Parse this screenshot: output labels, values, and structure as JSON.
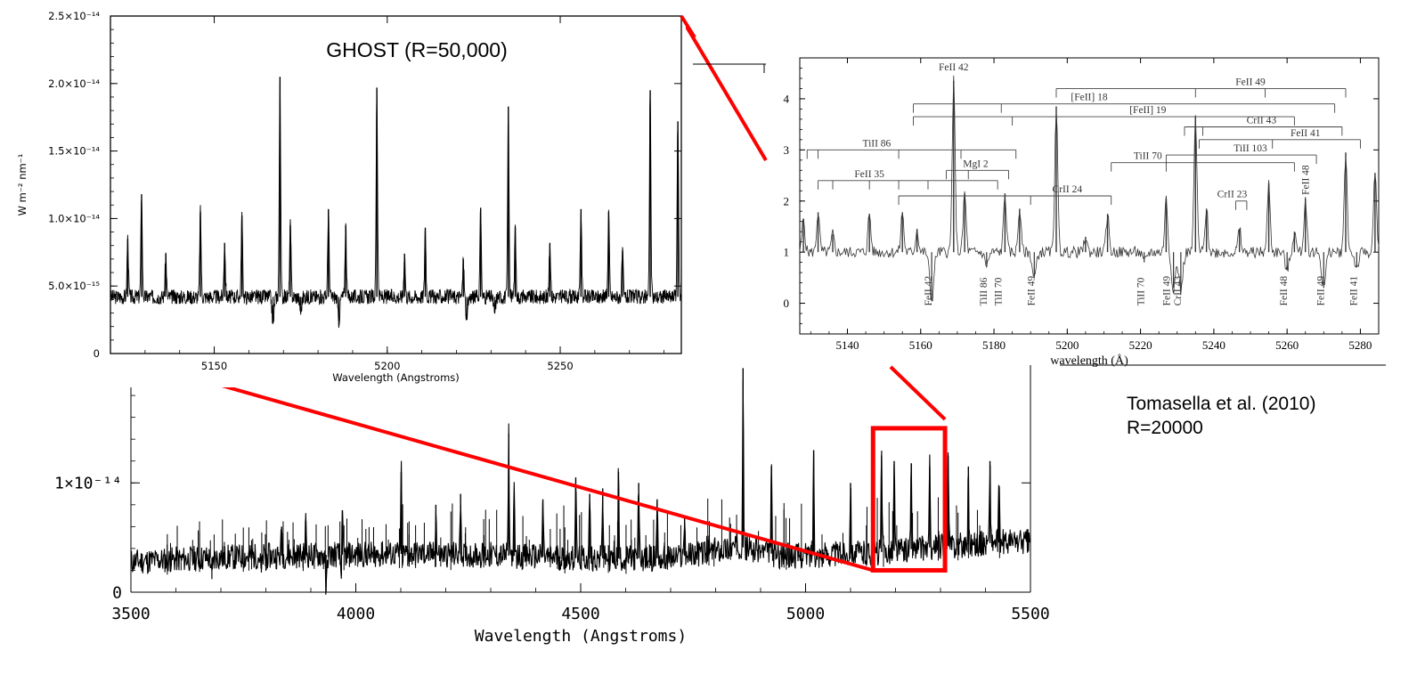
{
  "colors": {
    "spectrum": "#000000",
    "zoom_marker": "#ff0000",
    "background": "#ffffff"
  },
  "citation": {
    "line1": "Tomasella et al. (2010)",
    "line2": "R=20000"
  },
  "chart_data": [
    {
      "id": "main",
      "type": "line",
      "title": "",
      "xlabel": "Wavelength (Angstroms)",
      "ylabel": "",
      "xlim": [
        3500,
        5500
      ],
      "ylim": [
        0,
        2.2e-14
      ],
      "x_ticks": [
        {
          "value": 3500,
          "label": "3500"
        },
        {
          "value": 4000,
          "label": "4000"
        },
        {
          "value": 4500,
          "label": "4500"
        },
        {
          "value": 5000,
          "label": "5000"
        },
        {
          "value": 5500,
          "label": "5500"
        }
      ],
      "y_ticks": [
        {
          "value": 0,
          "label": "0"
        },
        {
          "value": 1e-14,
          "label": "1×10⁻¹⁴"
        }
      ],
      "continuum": [
        [
          3510,
          2.8e-15
        ],
        [
          3700,
          3.2e-15
        ],
        [
          3900,
          3.4e-15
        ],
        [
          4100,
          3.5e-15
        ],
        [
          4300,
          3.4e-15
        ],
        [
          4500,
          3.1e-15
        ],
        [
          4700,
          3.1e-15
        ],
        [
          4850,
          4.2e-15
        ],
        [
          4950,
          3.3e-15
        ],
        [
          5150,
          3.6e-15
        ],
        [
          5300,
          4.2e-15
        ],
        [
          5450,
          4.6e-15
        ]
      ],
      "emission_lines": [
        {
          "x": 4861,
          "y": 2.05e-14
        },
        {
          "x": 4340,
          "y": 1.45e-14
        },
        {
          "x": 4101,
          "y": 1.1e-14
        },
        {
          "x": 5018,
          "y": 1.3e-14
        },
        {
          "x": 4924,
          "y": 1.15e-14
        },
        {
          "x": 5169,
          "y": 1.25e-14
        },
        {
          "x": 5197,
          "y": 1.2e-14
        },
        {
          "x": 5235,
          "y": 1.18e-14
        },
        {
          "x": 5276,
          "y": 1.15e-14
        },
        {
          "x": 5317,
          "y": 1.25e-14
        },
        {
          "x": 5362,
          "y": 1.15e-14
        },
        {
          "x": 4584,
          "y": 1.1e-14
        },
        {
          "x": 4629,
          "y": 1e-14
        },
        {
          "x": 4549,
          "y": 9.5e-15
        },
        {
          "x": 4233,
          "y": 9e-15
        },
        {
          "x": 4416,
          "y": 8.5e-15
        },
        {
          "x": 4178,
          "y": 8e-15
        },
        {
          "x": 4352,
          "y": 9e-15
        },
        {
          "x": 4489,
          "y": 1.05e-14
        },
        {
          "x": 4520,
          "y": 9e-15
        },
        {
          "x": 4670,
          "y": 8.5e-15
        },
        {
          "x": 4731,
          "y": 7e-15
        },
        {
          "x": 5100,
          "y": 1e-14
        },
        {
          "x": 5410,
          "y": 1.2e-14
        },
        {
          "x": 5430,
          "y": 9.5e-15
        },
        {
          "x": 3970,
          "y": 7.5e-15
        },
        {
          "x": 3889,
          "y": 6.5e-15
        },
        {
          "x": 3835,
          "y": 6e-15
        }
      ],
      "absorption_lines": [
        {
          "x": 3934,
          "y": 0.0
        },
        {
          "x": 3968,
          "y": 1.5e-15
        },
        {
          "x": 3680,
          "y": 1.2e-15
        },
        {
          "x": 3790,
          "y": 1.8e-15
        }
      ],
      "zoom_box": {
        "x_range": [
          5150,
          5310
        ],
        "y_range": [
          2e-15,
          1.5e-14
        ]
      }
    },
    {
      "id": "ghost",
      "type": "line",
      "title": "GHOST (R=50,000)",
      "xlabel": "Wavelength (Angstroms)",
      "ylabel": "W m⁻² nm⁻¹",
      "xlim": [
        5120,
        5285
      ],
      "ylim": [
        0,
        2.5e-14
      ],
      "x_ticks": [
        {
          "value": 5150,
          "label": "5150"
        },
        {
          "value": 5200,
          "label": "5200"
        },
        {
          "value": 5250,
          "label": "5250"
        }
      ],
      "y_ticks": [
        {
          "value": 0,
          "label": "0"
        },
        {
          "value": 5e-15,
          "label": "5.0×10⁻¹⁵"
        },
        {
          "value": 1e-14,
          "label": "1.0×10⁻¹⁴"
        },
        {
          "value": 1.5e-14,
          "label": "1.5×10⁻¹⁴"
        },
        {
          "value": 2e-14,
          "label": "2.0×10⁻¹⁴"
        },
        {
          "value": 2.5e-14,
          "label": "2.5×10⁻¹⁴"
        }
      ],
      "continuum_level": 4.2e-15,
      "emission_lines": [
        {
          "x": 5169,
          "y": 2.05e-14
        },
        {
          "x": 5197,
          "y": 1.97e-14
        },
        {
          "x": 5235,
          "y": 1.83e-14
        },
        {
          "x": 5276,
          "y": 1.95e-14
        },
        {
          "x": 5284,
          "y": 1.72e-14
        },
        {
          "x": 5129,
          "y": 1.18e-14
        },
        {
          "x": 5146,
          "y": 1.05e-14
        },
        {
          "x": 5158,
          "y": 1.02e-14
        },
        {
          "x": 5183,
          "y": 1.07e-14
        },
        {
          "x": 5188,
          "y": 9.5e-15
        },
        {
          "x": 5211,
          "y": 9.3e-15
        },
        {
          "x": 5227,
          "y": 1.08e-14
        },
        {
          "x": 5264,
          "y": 1.05e-14
        },
        {
          "x": 5256,
          "y": 1.07e-14
        },
        {
          "x": 5237,
          "y": 9.4e-15
        },
        {
          "x": 5247,
          "y": 8.2e-15
        },
        {
          "x": 5172,
          "y": 9.5e-15
        },
        {
          "x": 5153,
          "y": 8.2e-15
        },
        {
          "x": 5136,
          "y": 7.4e-15
        },
        {
          "x": 5125,
          "y": 8.5e-15
        },
        {
          "x": 5205,
          "y": 7.4e-15
        },
        {
          "x": 5268,
          "y": 7.6e-15
        },
        {
          "x": 5222,
          "y": 7e-15
        }
      ],
      "absorption_lines": [
        {
          "x": 5167,
          "y": 2.2e-15
        },
        {
          "x": 5186,
          "y": 2.4e-15
        },
        {
          "x": 5223,
          "y": 2.5e-15
        },
        {
          "x": 5231,
          "y": 3e-15
        },
        {
          "x": 5175,
          "y": 3.1e-15
        }
      ]
    },
    {
      "id": "tomasella",
      "type": "line",
      "title": "",
      "xlabel": "wavelength (Å)",
      "ylabel": "",
      "xlim": [
        5127,
        5285
      ],
      "ylim": [
        -0.6,
        4.8
      ],
      "x_ticks": [
        {
          "value": 5140,
          "label": "5140"
        },
        {
          "value": 5160,
          "label": "5160"
        },
        {
          "value": 5180,
          "label": "5180"
        },
        {
          "value": 5200,
          "label": "5200"
        },
        {
          "value": 5220,
          "label": "5220"
        },
        {
          "value": 5240,
          "label": "5240"
        },
        {
          "value": 5260,
          "label": "5260"
        },
        {
          "value": 5280,
          "label": "5280"
        }
      ],
      "y_ticks": [
        {
          "value": 0,
          "label": "0"
        },
        {
          "value": 1,
          "label": "1"
        },
        {
          "value": 2,
          "label": "2"
        },
        {
          "value": 3,
          "label": "3"
        },
        {
          "value": 4,
          "label": "4"
        }
      ],
      "continuum_level": 1.0,
      "emission_lines": [
        {
          "x": 5169,
          "y": 4.35
        },
        {
          "x": 5197,
          "y": 3.85
        },
        {
          "x": 5235,
          "y": 3.65
        },
        {
          "x": 5276,
          "y": 2.95
        },
        {
          "x": 5284,
          "y": 2.55
        },
        {
          "x": 5132,
          "y": 1.78
        },
        {
          "x": 5146,
          "y": 1.75
        },
        {
          "x": 5155,
          "y": 1.78
        },
        {
          "x": 5172,
          "y": 2.15
        },
        {
          "x": 5183,
          "y": 2.15
        },
        {
          "x": 5187,
          "y": 1.85
        },
        {
          "x": 5211,
          "y": 1.75
        },
        {
          "x": 5227,
          "y": 2.05
        },
        {
          "x": 5238,
          "y": 1.85
        },
        {
          "x": 5255,
          "y": 2.35
        },
        {
          "x": 5265,
          "y": 2.05
        },
        {
          "x": 5128,
          "y": 1.65
        },
        {
          "x": 5136,
          "y": 1.35
        },
        {
          "x": 5159,
          "y": 1.45
        },
        {
          "x": 5205,
          "y": 1.3
        },
        {
          "x": 5247,
          "y": 1.45
        },
        {
          "x": 5262,
          "y": 1.4
        }
      ],
      "absorption_lines": [
        {
          "x": 5163,
          "y": 0.05
        },
        {
          "x": 5178,
          "y": 0.75
        },
        {
          "x": 5191,
          "y": 0.5
        },
        {
          "x": 5229,
          "y": 0.3
        },
        {
          "x": 5231,
          "y": 0.25
        },
        {
          "x": 5260,
          "y": 0.65
        },
        {
          "x": 5270,
          "y": 0.3
        },
        {
          "x": 5279,
          "y": 0.7
        },
        {
          "x": 5221,
          "y": 0.8
        }
      ],
      "multiplets": [
        {
          "label": "TiII 86",
          "y": 3.0,
          "x_from": 5129,
          "x_to": 5186,
          "ticks": [
            5129,
            5132,
            5154,
            5171,
            5186
          ],
          "label_x": 5148
        },
        {
          "label": "FeII 35",
          "y": 2.4,
          "x_from": 5132,
          "x_to": 5181,
          "ticks": [
            5132,
            5136,
            5146,
            5154,
            5162,
            5181
          ],
          "label_x": 5146
        },
        {
          "label": "MgI 2",
          "y": 2.6,
          "x_from": 5167,
          "x_to": 5184,
          "ticks": [
            5167,
            5173,
            5184
          ],
          "label_x": 5175
        },
        {
          "label": "CrII 24",
          "y": 2.1,
          "x_from": 5154,
          "x_to": 5212,
          "ticks": [
            5154,
            5190,
            5212
          ],
          "label_x": 5200
        },
        {
          "label": "[FeII] 19",
          "y": 3.65,
          "x_from": 5158,
          "x_to": 5262,
          "ticks": [
            5158,
            5185,
            5262
          ],
          "label_x": 5222
        },
        {
          "label": "[FeII] 18",
          "y": 3.9,
          "x_from": 5158,
          "x_to": 5273,
          "ticks": [
            5158,
            5182,
            5273
          ],
          "label_x": 5206
        },
        {
          "label": "FeII 49",
          "y": 4.2,
          "x_from": 5197,
          "x_to": 5276,
          "ticks": [
            5197,
            5235,
            5254,
            5276
          ],
          "label_x": 5250
        },
        {
          "label": "TiII 70",
          "y": 2.75,
          "x_from": 5212,
          "x_to": 5262,
          "ticks": [
            5212,
            5227,
            5262
          ],
          "label_x": 5222
        },
        {
          "label": "CrII 43",
          "y": 3.45,
          "x_from": 5232,
          "x_to": 5275,
          "ticks": [
            5232,
            5237,
            5275
          ],
          "label_x": 5253
        },
        {
          "label": "FeII 41",
          "y": 3.2,
          "x_from": 5236,
          "x_to": 5280,
          "ticks": [
            5236,
            5256,
            5280
          ],
          "label_x": 5265
        },
        {
          "label": "TiII 103",
          "y": 2.9,
          "x_from": 5227,
          "x_to": 5268,
          "ticks": [
            5227,
            5268
          ],
          "label_x": 5250
        },
        {
          "label": "CrII 23",
          "y": 2.0,
          "x_from": 5246,
          "x_to": 5249,
          "ticks": [
            5246,
            5249
          ],
          "label_x": 5245
        }
      ],
      "absorption_labels": [
        {
          "label": "FeII 42",
          "x": 5163
        },
        {
          "label": "TiII 86",
          "x": 5178
        },
        {
          "label": "TiII 70",
          "x": 5182
        },
        {
          "label": "FeII 49",
          "x": 5191
        },
        {
          "label": "TiII 70",
          "x": 5221
        },
        {
          "label": "FeII 49",
          "x": 5228
        },
        {
          "label": "CrII 43",
          "x": 5231
        },
        {
          "label": "FeII 48",
          "x": 5260
        },
        {
          "label": "FeII 49",
          "x": 5270
        },
        {
          "label": "FeII 41",
          "x": 5279
        }
      ],
      "emission_labels": [
        {
          "label": "FeII 42",
          "x": 5169,
          "y": 4.35
        },
        {
          "label": "FeII 48",
          "x": 5265,
          "y": 2.05
        }
      ]
    }
  ]
}
